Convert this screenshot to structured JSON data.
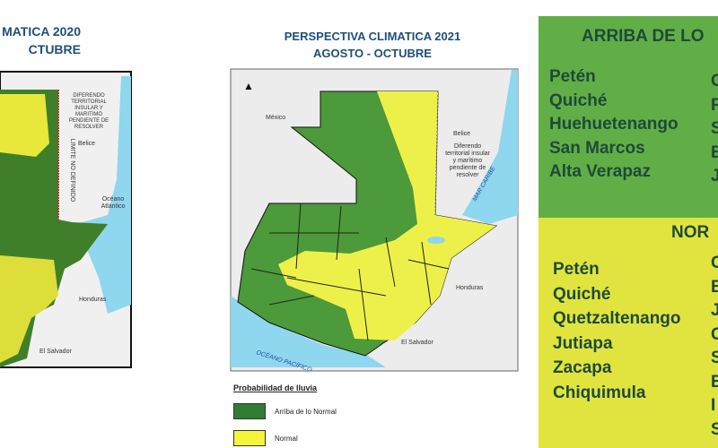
{
  "left_slide": {
    "title_line1": "MATICA 2020",
    "title_line2": "CTUBRE",
    "labels": {
      "belize": "Belice",
      "dispute": "DIFERENDO TERRITORIAL INSULAR Y MARITIMO PENDIENTE DE RESOLVER",
      "limit": "LIMITE NO DEFINIDO",
      "ocean": "Océano Atlántico",
      "honduras": "Honduras",
      "salvador": "El Salvador"
    }
  },
  "center_map": {
    "title_line1": "PERSPECTIVA CLIMATICA 2021",
    "title_line2": "AGOSTO - OCTUBRE",
    "labels": {
      "mexico": "México",
      "belize": "Belice",
      "dispute": "Diferendo territorial insular y marítimo pendiente de resolver",
      "caribbean": "MAR CARIBE",
      "honduras": "Honduras",
      "salvador": "El Salvador",
      "pacific": "OCÉANO PACÍFICO"
    },
    "legend": {
      "title": "Probabilidad de lluvia",
      "items": [
        {
          "label": "Arriba de lo Normal",
          "color": "#2e7d32"
        },
        {
          "label": "Normal",
          "color": "#f4f43a"
        }
      ]
    }
  },
  "colors": {
    "above_normal": "#4c9a3a",
    "normal": "#eef04a",
    "water": "#8fd6ef",
    "title": "#1f4e79"
  },
  "right_panel": {
    "above": {
      "heading": "ARRIBA DE LO",
      "col1": [
        "Petén",
        "Quiché",
        "Huehuetenango",
        "San Marcos",
        "Alta Verapaz"
      ],
      "col2_partial": [
        "C",
        "R",
        "S",
        "B",
        "J"
      ]
    },
    "normal": {
      "heading": "NOR",
      "col1": [
        "Petén",
        "Quiché",
        "Quetzaltenango",
        "Jutiapa",
        "Zacapa",
        "Chiquimula"
      ],
      "col2_partial": [
        "C",
        "B",
        "J",
        "C",
        "S",
        "B",
        "I",
        "S"
      ]
    }
  }
}
